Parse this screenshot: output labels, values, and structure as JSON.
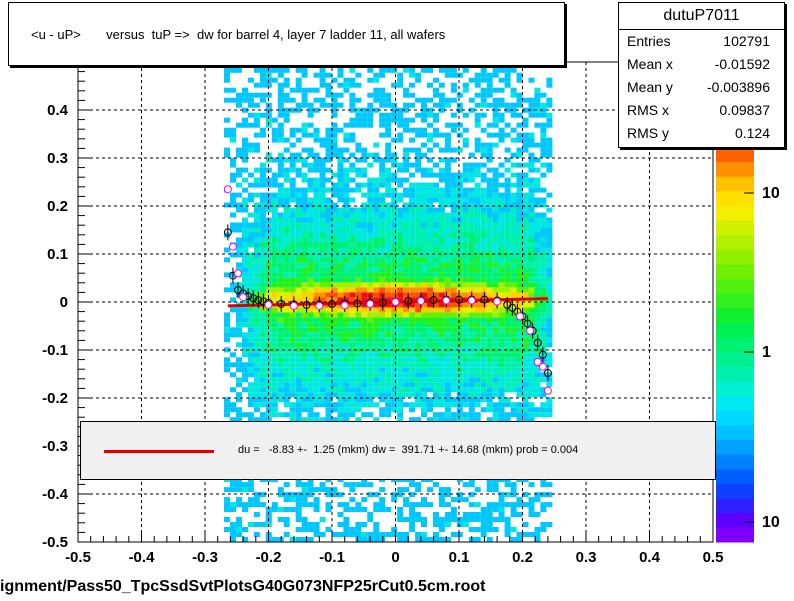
{
  "chart_data": {
    "type": "heatmap",
    "title": "<u - uP>       versus  tuP =>  dw for barrel 4, layer 7 ladder 11, all wafers",
    "xlim": [
      -0.5,
      0.5
    ],
    "ylim": [
      -0.5,
      0.5
    ],
    "x_ticks": [
      "-0.5",
      "-0.4",
      "-0.3",
      "-0.2",
      "-0.1",
      "0",
      "0.1",
      "0.2",
      "0.3",
      "0.4",
      "0.5"
    ],
    "y_ticks": [
      "-0.5",
      "-0.4",
      "-0.3",
      "-0.2",
      "-0.1",
      "0",
      "0.1",
      "0.2",
      "0.3",
      "0.4",
      "0.5"
    ],
    "grid": true,
    "color_scale": "log",
    "colorbar_ticks": [
      "1",
      "10",
      "10"
    ],
    "profile_black": [
      {
        "x": -0.264,
        "y": 0.145
      },
      {
        "x": -0.256,
        "y": 0.055
      },
      {
        "x": -0.248,
        "y": 0.025
      },
      {
        "x": -0.24,
        "y": 0.018
      },
      {
        "x": -0.232,
        "y": 0.012
      },
      {
        "x": -0.224,
        "y": 0.008
      },
      {
        "x": -0.216,
        "y": 0.004
      },
      {
        "x": -0.208,
        "y": 0.001
      },
      {
        "x": -0.2,
        "y": -0.002
      },
      {
        "x": -0.18,
        "y": -0.004
      },
      {
        "x": -0.16,
        "y": -0.005
      },
      {
        "x": -0.14,
        "y": -0.006
      },
      {
        "x": -0.12,
        "y": -0.005
      },
      {
        "x": -0.1,
        "y": -0.004
      },
      {
        "x": -0.08,
        "y": -0.004
      },
      {
        "x": -0.06,
        "y": -0.003
      },
      {
        "x": -0.04,
        "y": -0.002
      },
      {
        "x": -0.02,
        "y": -0.001
      },
      {
        "x": 0.0,
        "y": 0.0
      },
      {
        "x": 0.02,
        "y": 0.002
      },
      {
        "x": 0.04,
        "y": 0.003
      },
      {
        "x": 0.06,
        "y": 0.004
      },
      {
        "x": 0.08,
        "y": 0.005
      },
      {
        "x": 0.1,
        "y": 0.005
      },
      {
        "x": 0.12,
        "y": 0.005
      },
      {
        "x": 0.14,
        "y": 0.005
      },
      {
        "x": 0.16,
        "y": 0.003
      },
      {
        "x": 0.176,
        "y": -0.006
      },
      {
        "x": 0.184,
        "y": -0.012
      },
      {
        "x": 0.192,
        "y": -0.02
      },
      {
        "x": 0.2,
        "y": -0.03
      },
      {
        "x": 0.208,
        "y": -0.045
      },
      {
        "x": 0.216,
        "y": -0.06
      },
      {
        "x": 0.224,
        "y": -0.085
      },
      {
        "x": 0.232,
        "y": -0.11
      },
      {
        "x": 0.24,
        "y": -0.148
      }
    ],
    "profile_magenta": [
      {
        "x": -0.264,
        "y": 0.235
      },
      {
        "x": -0.256,
        "y": 0.115
      },
      {
        "x": -0.248,
        "y": 0.06
      },
      {
        "x": -0.24,
        "y": 0.01
      },
      {
        "x": -0.2,
        "y": -0.006
      },
      {
        "x": -0.16,
        "y": -0.008
      },
      {
        "x": -0.12,
        "y": -0.008
      },
      {
        "x": -0.08,
        "y": -0.007
      },
      {
        "x": -0.04,
        "y": -0.004
      },
      {
        "x": 0.0,
        "y": 0.0
      },
      {
        "x": 0.04,
        "y": 0.002
      },
      {
        "x": 0.08,
        "y": 0.003
      },
      {
        "x": 0.12,
        "y": 0.003
      },
      {
        "x": 0.16,
        "y": 0.001
      },
      {
        "x": 0.196,
        "y": -0.03
      },
      {
        "x": 0.212,
        "y": -0.06
      },
      {
        "x": 0.224,
        "y": -0.125
      },
      {
        "x": 0.232,
        "y": -0.135
      },
      {
        "x": 0.24,
        "y": -0.185
      }
    ],
    "fit_line": [
      {
        "x": -0.264,
        "y": -0.008
      },
      {
        "x": 0.24,
        "y": 0.007
      }
    ],
    "colors": {
      "fit": "#e00000",
      "profile_open": "#000000",
      "profile_alt": "#ff00ff"
    }
  },
  "title_box": {
    "text": "<u - uP>       versus  tuP =>  dw for barrel 4, layer 7 ladder 11, all wafers"
  },
  "stats": {
    "name": "dutuP7011",
    "rows": [
      {
        "key": "Entries",
        "value": "102791"
      },
      {
        "key": "Mean x",
        "value": "-0.01592"
      },
      {
        "key": "Mean y",
        "value": "-0.003896"
      },
      {
        "key": "RMS x",
        "value": "0.09837"
      },
      {
        "key": "RMS y",
        "value": "0.124"
      }
    ]
  },
  "fit_legend": {
    "text": "du =   -8.83 +-  1.25 (mkm) dw =  391.71 +- 14.68 (mkm) prob = 0.004"
  },
  "file_label": "ignment/Pass50_TpcSsdSvtPlotsG40G073NFP25rCut0.5cm.root"
}
